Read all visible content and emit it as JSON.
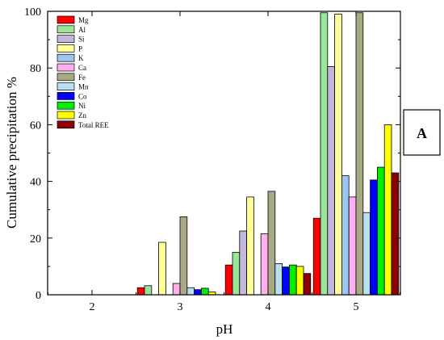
{
  "chart_data": {
    "type": "bar",
    "xlabel": "pH",
    "ylabel": "Cumulative precipitation %",
    "panel_label": "A",
    "ylim": [
      0,
      100
    ],
    "yticks": [
      0,
      20,
      40,
      60,
      80,
      100
    ],
    "categories": [
      "2",
      "3",
      "4",
      "5"
    ],
    "legend_position": "top-left",
    "grid": false,
    "series": [
      {
        "name": "Mg",
        "color": "#ff0000",
        "values": [
          0,
          2.5,
          10.5,
          27
        ]
      },
      {
        "name": "Al",
        "color": "#99e699",
        "values": [
          0,
          3.2,
          15,
          99.5
        ]
      },
      {
        "name": "Si",
        "color": "#c3b8dc",
        "values": [
          0,
          0,
          22.5,
          80.5
        ]
      },
      {
        "name": "P",
        "color": "#ffff99",
        "values": [
          0,
          18.5,
          34.5,
          99
        ]
      },
      {
        "name": "K",
        "color": "#9fc4f0",
        "values": [
          0,
          0,
          0,
          42
        ]
      },
      {
        "name": "Ca",
        "color": "#ffb0ee",
        "values": [
          0,
          4,
          21.5,
          34.5
        ]
      },
      {
        "name": "Fe",
        "color": "#a8a884",
        "values": [
          0,
          27.5,
          36.5,
          99.5
        ]
      },
      {
        "name": "Mn",
        "color": "#b9e0f0",
        "values": [
          0,
          2.5,
          11,
          29
        ]
      },
      {
        "name": "Co",
        "color": "#0000ff",
        "values": [
          0,
          1.8,
          9.8,
          40.5
        ]
      },
      {
        "name": "Ni",
        "color": "#00ee00",
        "values": [
          0,
          2.3,
          10.5,
          45
        ]
      },
      {
        "name": "Zn",
        "color": "#ffff00",
        "values": [
          0,
          1,
          10,
          60
        ]
      },
      {
        "name": "Total REE",
        "color": "#8b0000",
        "values": [
          0,
          0,
          7.5,
          43
        ]
      }
    ]
  }
}
